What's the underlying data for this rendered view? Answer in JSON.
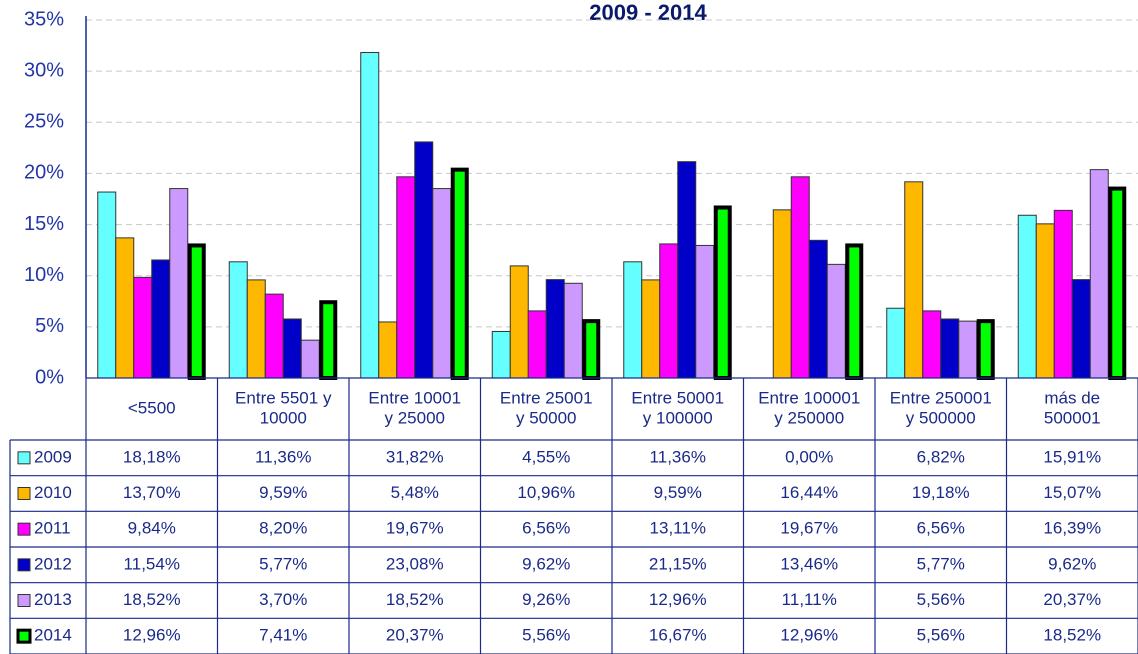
{
  "chart_data": {
    "type": "bar",
    "title": "2009 - 2014",
    "categories": [
      [
        "<5500"
      ],
      [
        "Entre 5501 y",
        "10000"
      ],
      [
        "Entre 10001",
        "y 25000"
      ],
      [
        "Entre 25001",
        "y 50000"
      ],
      [
        "Entre 50001",
        "y 100000"
      ],
      [
        "Entre 100001",
        "y 250000"
      ],
      [
        "Entre 250001",
        "y 500000"
      ],
      [
        "más de",
        "500001"
      ]
    ],
    "series": [
      {
        "name": "2009",
        "color": "#66ffff",
        "values": [
          18.18,
          11.36,
          31.82,
          4.55,
          11.36,
          0.0,
          6.82,
          15.91
        ],
        "value_labels": [
          "18,18%",
          "11,36%",
          "31,82%",
          "4,55%",
          "11,36%",
          "0,00%",
          "6,82%",
          "15,91%"
        ]
      },
      {
        "name": "2010",
        "color": "#ffb800",
        "values": [
          13.7,
          9.59,
          5.48,
          10.96,
          9.59,
          16.44,
          19.18,
          15.07
        ],
        "value_labels": [
          "13,70%",
          "9,59%",
          "5,48%",
          "10,96%",
          "9,59%",
          "16,44%",
          "19,18%",
          "15,07%"
        ]
      },
      {
        "name": "2011",
        "color": "#ff00ff",
        "values": [
          9.84,
          8.2,
          19.67,
          6.56,
          13.11,
          19.67,
          6.56,
          16.39
        ],
        "value_labels": [
          "9,84%",
          "8,20%",
          "19,67%",
          "6,56%",
          "13,11%",
          "19,67%",
          "6,56%",
          "16,39%"
        ]
      },
      {
        "name": "2012",
        "color": "#0000c8",
        "values": [
          11.54,
          5.77,
          23.08,
          9.62,
          21.15,
          13.46,
          5.77,
          9.62
        ],
        "value_labels": [
          "11,54%",
          "5,77%",
          "23,08%",
          "9,62%",
          "21,15%",
          "13,46%",
          "5,77%",
          "9,62%"
        ]
      },
      {
        "name": "2013",
        "color": "#cc99ff",
        "values": [
          18.52,
          3.7,
          18.52,
          9.26,
          12.96,
          11.11,
          5.56,
          20.37
        ],
        "value_labels": [
          "18,52%",
          "3,70%",
          "18,52%",
          "9,26%",
          "12,96%",
          "11,11%",
          "5,56%",
          "20,37%"
        ]
      },
      {
        "name": "2014",
        "color": "#00ff00",
        "border": "#000000",
        "values": [
          12.96,
          7.41,
          20.37,
          5.56,
          16.67,
          12.96,
          5.56,
          18.52
        ],
        "value_labels": [
          "12,96%",
          "7,41%",
          "20,37%",
          "5,56%",
          "16,67%",
          "12,96%",
          "5,56%",
          "18,52%"
        ]
      }
    ],
    "ylim": [
      0,
      35
    ],
    "yticks": [
      {
        "value": 0,
        "label": "0%"
      },
      {
        "value": 5,
        "label": "5%"
      },
      {
        "value": 10,
        "label": "10%"
      },
      {
        "value": 15,
        "label": "15%"
      },
      {
        "value": 20,
        "label": "20%"
      },
      {
        "value": 25,
        "label": "25%"
      },
      {
        "value": 30,
        "label": "30%"
      },
      {
        "value": 35,
        "label": "35%"
      }
    ],
    "grid": true
  }
}
